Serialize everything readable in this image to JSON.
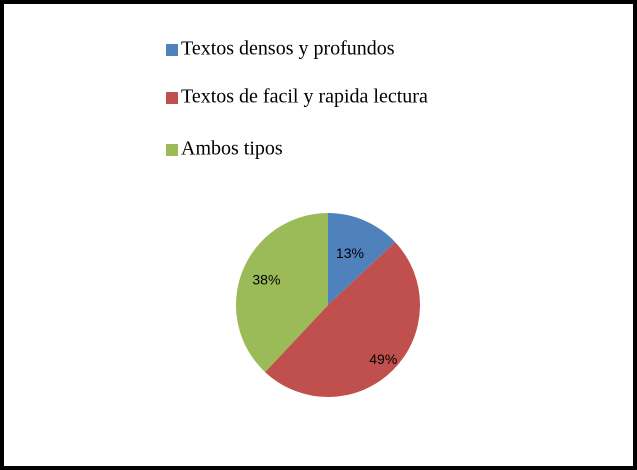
{
  "chart_data": {
    "type": "pie",
    "categories": [
      "Textos densos y profundos",
      "Textos de facil y rapida lectura",
      "Ambos tipos"
    ],
    "values": [
      13,
      49,
      38
    ],
    "value_labels": [
      "13%",
      "49%",
      "38%"
    ],
    "colors": [
      "#4f81bd",
      "#c0504d",
      "#9bbb59"
    ],
    "legend": "top"
  }
}
